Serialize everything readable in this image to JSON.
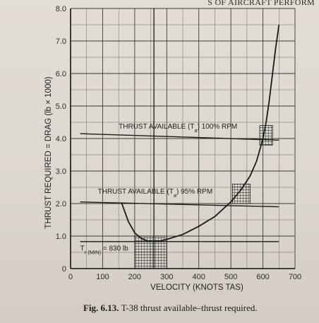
{
  "page": {
    "header_fragment": "S OF AIRCRAFT PERFORM",
    "caption_label": "Fig. 6.13.",
    "caption_text": "T-38 thrust available–thrust required."
  },
  "chart_data": {
    "type": "line",
    "title": "",
    "xlabel": "VELOCITY (KNOTS TAS)",
    "ylabel": "THRUST REQUIRED = DRAG (lb × 1000)",
    "xlim": [
      0,
      700
    ],
    "ylim": [
      0,
      8.0
    ],
    "x_ticks": [
      0,
      100,
      200,
      300,
      400,
      500,
      600,
      700
    ],
    "x_tick_labels": [
      "0",
      "100",
      "200",
      "300",
      "400",
      "500",
      "600",
      "700"
    ],
    "y_ticks": [
      0,
      1.0,
      2.0,
      3.0,
      4.0,
      5.0,
      6.0,
      7.0,
      8.0
    ],
    "y_tick_labels": [
      "0",
      "1.0",
      "2.0",
      "3.0",
      "4.0",
      "5.0",
      "6.0",
      "7.0",
      "8.0"
    ],
    "grid": true,
    "series": [
      {
        "role": "thrust_required",
        "color": "#1a1a1a",
        "x": [
          160,
          180,
          200,
          220,
          240,
          260,
          280,
          300,
          350,
          400,
          450,
          500,
          530,
          560,
          580,
          600,
          610,
          620,
          630,
          640,
          650
        ],
        "y": [
          2.0,
          1.45,
          1.1,
          0.93,
          0.85,
          0.83,
          0.85,
          0.9,
          1.05,
          1.3,
          1.6,
          2.05,
          2.4,
          2.85,
          3.3,
          4.0,
          4.5,
          5.2,
          6.0,
          6.8,
          7.5
        ]
      },
      {
        "role": "thrust_available_100",
        "color": "#1a1a1a",
        "x": [
          30,
          650
        ],
        "y": [
          4.15,
          3.95
        ]
      },
      {
        "role": "thrust_available_95",
        "color": "#1a1a1a",
        "x": [
          30,
          650
        ],
        "y": [
          2.05,
          1.9
        ]
      },
      {
        "role": "tr_min_line",
        "color": "#1a1a1a",
        "x": [
          30,
          650
        ],
        "y": [
          0.83,
          0.83
        ]
      }
    ],
    "annotations": [
      {
        "id": "ta100",
        "text": "THRUST AVAILABLE (T",
        "sub": "a",
        "tail": ") 100% RPM",
        "x": 150,
        "y": 4.3
      },
      {
        "id": "ta95",
        "text": "THRUST AVAILABLE (T",
        "sub": "a",
        "tail": ") 95% RPM",
        "x": 85,
        "y": 2.3
      },
      {
        "id": "trmin",
        "text": "T",
        "sub": "r (MIN)",
        "tail": " = 830 lb",
        "x": 30,
        "y": 0.55
      }
    ],
    "hatched_regions": [
      {
        "x": [
          200,
          300
        ],
        "y": [
          0,
          1.0
        ]
      },
      {
        "x": [
          505,
          560
        ],
        "y": [
          2.0,
          2.6
        ]
      },
      {
        "x": [
          590,
          630
        ],
        "y": [
          3.8,
          4.4
        ]
      }
    ],
    "vertical_markers": [
      {
        "x": 260
      }
    ]
  }
}
